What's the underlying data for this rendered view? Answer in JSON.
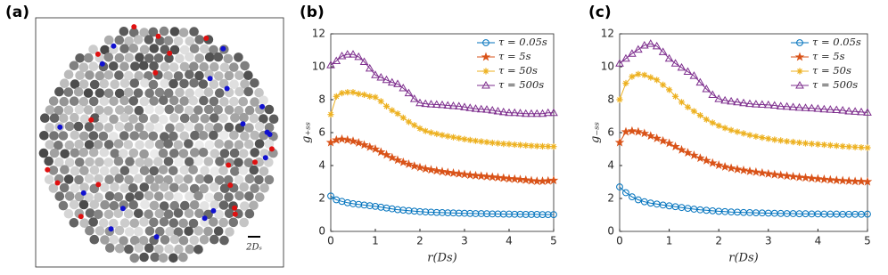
{
  "image_panel": {
    "label": "(a)",
    "scale_label": "2Dₛ"
  },
  "chart_data": [
    {
      "type": "line",
      "label": "(b)",
      "xlabel": "r(Ds)",
      "ylabel": "g₊ₛₛ",
      "xlim": [
        0,
        5
      ],
      "ylim": [
        0,
        12
      ],
      "xticks": [
        0,
        1,
        2,
        3,
        4,
        5
      ],
      "yticks": [
        0,
        2,
        4,
        6,
        8,
        10,
        12
      ],
      "legend": "upper right",
      "x": [
        0,
        0.125,
        0.25,
        0.375,
        0.5,
        0.625,
        0.75,
        0.875,
        1,
        1.125,
        1.25,
        1.375,
        1.5,
        1.625,
        1.75,
        1.875,
        2,
        2.125,
        2.25,
        2.375,
        2.5,
        2.625,
        2.75,
        2.875,
        3,
        3.125,
        3.25,
        3.375,
        3.5,
        3.625,
        3.75,
        3.875,
        4,
        4.125,
        4.25,
        4.375,
        4.5,
        4.625,
        4.75,
        4.875,
        5
      ],
      "series": [
        {
          "name": "τ = 0.05s",
          "color": "#0072bd",
          "marker": "o",
          "values": [
            2.15,
            1.92,
            1.82,
            1.74,
            1.68,
            1.64,
            1.6,
            1.56,
            1.52,
            1.47,
            1.42,
            1.37,
            1.32,
            1.29,
            1.26,
            1.23,
            1.2,
            1.18,
            1.17,
            1.15,
            1.14,
            1.13,
            1.12,
            1.11,
            1.1,
            1.09,
            1.08,
            1.08,
            1.07,
            1.06,
            1.06,
            1.05,
            1.05,
            1.04,
            1.04,
            1.03,
            1.03,
            1.03,
            1.02,
            1.02,
            1.02
          ]
        },
        {
          "name": "τ = 5s",
          "color": "#d95319",
          "marker": "p",
          "values": [
            5.4,
            5.55,
            5.6,
            5.55,
            5.48,
            5.38,
            5.25,
            5.12,
            5.0,
            4.82,
            4.65,
            4.48,
            4.33,
            4.2,
            4.08,
            3.97,
            3.88,
            3.8,
            3.74,
            3.68,
            3.63,
            3.58,
            3.54,
            3.5,
            3.46,
            3.42,
            3.39,
            3.36,
            3.33,
            3.3,
            3.27,
            3.24,
            3.2,
            3.18,
            3.15,
            3.12,
            3.08,
            3.05,
            3.05,
            3.07,
            3.1
          ]
        },
        {
          "name": "τ = 50s",
          "color": "#edb120",
          "marker": "*",
          "values": [
            7.1,
            8.2,
            8.4,
            8.45,
            8.45,
            8.35,
            8.3,
            8.2,
            8.15,
            7.9,
            7.6,
            7.35,
            7.15,
            6.9,
            6.65,
            6.45,
            6.25,
            6.1,
            6.0,
            5.92,
            5.85,
            5.78,
            5.72,
            5.66,
            5.6,
            5.55,
            5.5,
            5.46,
            5.42,
            5.38,
            5.35,
            5.32,
            5.3,
            5.27,
            5.25,
            5.22,
            5.2,
            5.18,
            5.17,
            5.16,
            5.15
          ]
        },
        {
          "name": "τ = 500s",
          "color": "#7e2f8e",
          "marker": "^",
          "values": [
            10.1,
            10.35,
            10.65,
            10.75,
            10.75,
            10.6,
            10.3,
            9.9,
            9.5,
            9.35,
            9.2,
            9.05,
            8.95,
            8.7,
            8.4,
            8.05,
            7.8,
            7.75,
            7.72,
            7.7,
            7.68,
            7.65,
            7.62,
            7.6,
            7.55,
            7.5,
            7.45,
            7.42,
            7.4,
            7.35,
            7.3,
            7.25,
            7.2,
            7.2,
            7.18,
            7.15,
            7.15,
            7.15,
            7.15,
            7.2,
            7.2
          ]
        }
      ]
    },
    {
      "type": "line",
      "label": "(c)",
      "xlabel": "r(Ds)",
      "ylabel": "g₋ₛₛ",
      "xlim": [
        0,
        5
      ],
      "ylim": [
        0,
        12
      ],
      "xticks": [
        0,
        1,
        2,
        3,
        4,
        5
      ],
      "yticks": [
        0,
        2,
        4,
        6,
        8,
        10,
        12
      ],
      "legend": "upper right",
      "x": [
        0,
        0.125,
        0.25,
        0.375,
        0.5,
        0.625,
        0.75,
        0.875,
        1,
        1.125,
        1.25,
        1.375,
        1.5,
        1.625,
        1.75,
        1.875,
        2,
        2.125,
        2.25,
        2.375,
        2.5,
        2.625,
        2.75,
        2.875,
        3,
        3.125,
        3.25,
        3.375,
        3.5,
        3.625,
        3.75,
        3.875,
        4,
        4.125,
        4.25,
        4.375,
        4.5,
        4.625,
        4.75,
        4.875,
        5
      ],
      "series": [
        {
          "name": "τ = 0.05s",
          "color": "#0072bd",
          "marker": "o",
          "values": [
            2.7,
            2.35,
            2.1,
            1.92,
            1.8,
            1.72,
            1.66,
            1.6,
            1.55,
            1.5,
            1.45,
            1.4,
            1.35,
            1.31,
            1.28,
            1.25,
            1.22,
            1.2,
            1.18,
            1.17,
            1.15,
            1.14,
            1.13,
            1.12,
            1.11,
            1.1,
            1.09,
            1.08,
            1.08,
            1.07,
            1.07,
            1.06,
            1.06,
            1.05,
            1.05,
            1.05,
            1.04,
            1.04,
            1.04,
            1.04,
            1.05
          ]
        },
        {
          "name": "τ = 5s",
          "color": "#d95319",
          "marker": "p",
          "values": [
            5.4,
            6.05,
            6.1,
            6.05,
            5.95,
            5.8,
            5.65,
            5.5,
            5.35,
            5.15,
            4.95,
            4.78,
            4.62,
            4.45,
            4.3,
            4.15,
            4.02,
            3.92,
            3.84,
            3.77,
            3.71,
            3.65,
            3.6,
            3.55,
            3.5,
            3.45,
            3.41,
            3.37,
            3.33,
            3.29,
            3.26,
            3.22,
            3.19,
            3.16,
            3.13,
            3.1,
            3.08,
            3.06,
            3.04,
            3.03,
            3.02
          ]
        },
        {
          "name": "τ = 50s",
          "color": "#edb120",
          "marker": "*",
          "values": [
            8.0,
            9.0,
            9.4,
            9.55,
            9.5,
            9.35,
            9.2,
            8.9,
            8.6,
            8.2,
            7.85,
            7.55,
            7.3,
            7.05,
            6.8,
            6.6,
            6.42,
            6.28,
            6.15,
            6.05,
            5.95,
            5.85,
            5.77,
            5.7,
            5.63,
            5.57,
            5.52,
            5.47,
            5.43,
            5.39,
            5.35,
            5.32,
            5.29,
            5.26,
            5.23,
            5.2,
            5.17,
            5.14,
            5.12,
            5.1,
            5.08
          ]
        },
        {
          "name": "τ = 500s",
          "color": "#7e2f8e",
          "marker": "^",
          "values": [
            10.2,
            10.5,
            10.8,
            11.05,
            11.3,
            11.4,
            11.25,
            10.9,
            10.5,
            10.2,
            9.95,
            9.7,
            9.45,
            9.05,
            8.65,
            8.3,
            8.05,
            7.95,
            7.9,
            7.85,
            7.8,
            7.75,
            7.72,
            7.7,
            7.68,
            7.65,
            7.6,
            7.58,
            7.55,
            7.52,
            7.5,
            7.48,
            7.45,
            7.42,
            7.4,
            7.38,
            7.35,
            7.3,
            7.28,
            7.25,
            7.22
          ]
        }
      ]
    }
  ]
}
